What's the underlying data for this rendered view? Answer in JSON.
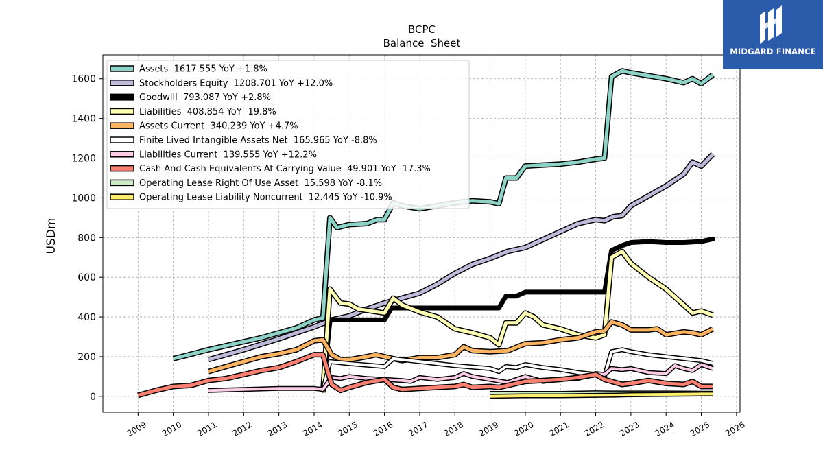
{
  "logo": {
    "text": "MIDGARD FINANCE",
    "background": "#2a5cab"
  },
  "chart_data": {
    "type": "line",
    "title": "BCPC",
    "subtitle": "Balance  Sheet",
    "xlabel": "",
    "ylabel": "USDm",
    "xlim": [
      2008.0,
      2026.1
    ],
    "ylim": [
      -80,
      1720
    ],
    "x_ticks": [
      "2009",
      "2010",
      "2011",
      "2012",
      "2013",
      "2014",
      "2015",
      "2016",
      "2017",
      "2018",
      "2019",
      "2020",
      "2021",
      "2022",
      "2023",
      "2024",
      "2025",
      "2026"
    ],
    "y_ticks": [
      "0",
      "200",
      "400",
      "600",
      "800",
      "1000",
      "1200",
      "1400",
      "1600"
    ],
    "grid": true,
    "legend_position": "top-left",
    "series": [
      {
        "name": "Assets",
        "label": "Assets  1617.555 YoY +1.8%",
        "color": "#8dd3c7",
        "width": 5,
        "points": [
          [
            2010.0,
            190
          ],
          [
            2011.0,
            235
          ],
          [
            2012.0,
            275
          ],
          [
            2012.5,
            295
          ],
          [
            2013.0,
            320
          ],
          [
            2013.5,
            345
          ],
          [
            2014.0,
            385
          ],
          [
            2014.25,
            395
          ],
          [
            2014.45,
            900
          ],
          [
            2014.65,
            850
          ],
          [
            2015.0,
            865
          ],
          [
            2015.5,
            870
          ],
          [
            2015.8,
            890
          ],
          [
            2016.0,
            890
          ],
          [
            2016.25,
            975
          ],
          [
            2016.5,
            960
          ],
          [
            2017.0,
            945
          ],
          [
            2017.5,
            960
          ],
          [
            2018.0,
            975
          ],
          [
            2018.5,
            985
          ],
          [
            2019.0,
            980
          ],
          [
            2019.25,
            970
          ],
          [
            2019.45,
            1100
          ],
          [
            2019.75,
            1100
          ],
          [
            2020.0,
            1160
          ],
          [
            2020.5,
            1165
          ],
          [
            2021.0,
            1170
          ],
          [
            2021.5,
            1180
          ],
          [
            2022.0,
            1195
          ],
          [
            2022.25,
            1200
          ],
          [
            2022.45,
            1610
          ],
          [
            2022.75,
            1640
          ],
          [
            2023.0,
            1630
          ],
          [
            2023.5,
            1615
          ],
          [
            2024.0,
            1600
          ],
          [
            2024.25,
            1590
          ],
          [
            2024.5,
            1580
          ],
          [
            2024.75,
            1600
          ],
          [
            2025.0,
            1575
          ],
          [
            2025.33,
            1620
          ]
        ]
      },
      {
        "name": "Stockholders Equity",
        "label": "Stockholders Equity  1208.701 YoY +12.0%",
        "color": "#bebada",
        "width": 5,
        "points": [
          [
            2011.0,
            185
          ],
          [
            2012.0,
            235
          ],
          [
            2013.0,
            290
          ],
          [
            2014.0,
            350
          ],
          [
            2014.5,
            385
          ],
          [
            2015.0,
            405
          ],
          [
            2015.5,
            440
          ],
          [
            2016.0,
            470
          ],
          [
            2016.5,
            495
          ],
          [
            2017.0,
            520
          ],
          [
            2017.5,
            565
          ],
          [
            2018.0,
            620
          ],
          [
            2018.5,
            665
          ],
          [
            2019.0,
            695
          ],
          [
            2019.5,
            730
          ],
          [
            2020.0,
            750
          ],
          [
            2020.5,
            790
          ],
          [
            2021.0,
            830
          ],
          [
            2021.5,
            870
          ],
          [
            2022.0,
            890
          ],
          [
            2022.25,
            885
          ],
          [
            2022.5,
            905
          ],
          [
            2022.75,
            910
          ],
          [
            2023.0,
            960
          ],
          [
            2023.5,
            1010
          ],
          [
            2024.0,
            1060
          ],
          [
            2024.5,
            1120
          ],
          [
            2024.75,
            1180
          ],
          [
            2025.0,
            1160
          ],
          [
            2025.33,
            1220
          ]
        ]
      },
      {
        "name": "Goodwill",
        "label": "Goodwill  793.087 YoY +2.8%",
        "color": "#000000",
        "width": 7,
        "points": [
          [
            2014.25,
            30
          ],
          [
            2014.45,
            385
          ],
          [
            2016.0,
            385
          ],
          [
            2016.2,
            445
          ],
          [
            2019.25,
            445
          ],
          [
            2019.45,
            505
          ],
          [
            2019.75,
            505
          ],
          [
            2020.0,
            525
          ],
          [
            2022.25,
            525
          ],
          [
            2022.45,
            735
          ],
          [
            2022.75,
            760
          ],
          [
            2023.0,
            775
          ],
          [
            2023.5,
            780
          ],
          [
            2024.0,
            775
          ],
          [
            2024.5,
            775
          ],
          [
            2025.0,
            780
          ],
          [
            2025.33,
            793
          ]
        ]
      },
      {
        "name": "Liabilities",
        "label": "Liabilities  408.854 YoY -19.8%",
        "color": "#ffffb3",
        "width": 5,
        "points": [
          [
            2014.25,
            20
          ],
          [
            2014.45,
            540
          ],
          [
            2014.75,
            470
          ],
          [
            2015.0,
            465
          ],
          [
            2015.25,
            440
          ],
          [
            2016.0,
            420
          ],
          [
            2016.25,
            495
          ],
          [
            2016.5,
            460
          ],
          [
            2017.0,
            425
          ],
          [
            2017.5,
            400
          ],
          [
            2018.0,
            340
          ],
          [
            2018.5,
            320
          ],
          [
            2019.0,
            295
          ],
          [
            2019.25,
            260
          ],
          [
            2019.45,
            370
          ],
          [
            2019.75,
            370
          ],
          [
            2020.0,
            420
          ],
          [
            2020.25,
            400
          ],
          [
            2020.5,
            360
          ],
          [
            2021.0,
            340
          ],
          [
            2021.5,
            310
          ],
          [
            2022.0,
            295
          ],
          [
            2022.25,
            310
          ],
          [
            2022.45,
            700
          ],
          [
            2022.75,
            730
          ],
          [
            2023.0,
            670
          ],
          [
            2023.5,
            600
          ],
          [
            2024.0,
            540
          ],
          [
            2024.25,
            500
          ],
          [
            2024.5,
            460
          ],
          [
            2024.75,
            420
          ],
          [
            2025.0,
            430
          ],
          [
            2025.33,
            409
          ]
        ]
      },
      {
        "name": "Assets Current",
        "label": "Assets Current  340.239 YoY +4.7%",
        "color": "#fdb462",
        "width": 5,
        "points": [
          [
            2011.0,
            125
          ],
          [
            2011.5,
            150
          ],
          [
            2012.0,
            175
          ],
          [
            2012.5,
            200
          ],
          [
            2013.0,
            215
          ],
          [
            2013.5,
            235
          ],
          [
            2014.0,
            280
          ],
          [
            2014.25,
            285
          ],
          [
            2014.5,
            210
          ],
          [
            2014.75,
            185
          ],
          [
            2015.0,
            185
          ],
          [
            2015.5,
            200
          ],
          [
            2015.75,
            210
          ],
          [
            2016.0,
            200
          ],
          [
            2016.5,
            180
          ],
          [
            2017.0,
            195
          ],
          [
            2017.5,
            195
          ],
          [
            2018.0,
            210
          ],
          [
            2018.25,
            250
          ],
          [
            2018.5,
            230
          ],
          [
            2019.0,
            225
          ],
          [
            2019.5,
            230
          ],
          [
            2020.0,
            265
          ],
          [
            2020.5,
            270
          ],
          [
            2021.0,
            285
          ],
          [
            2021.5,
            295
          ],
          [
            2022.0,
            325
          ],
          [
            2022.25,
            330
          ],
          [
            2022.45,
            375
          ],
          [
            2022.75,
            360
          ],
          [
            2023.0,
            335
          ],
          [
            2023.5,
            335
          ],
          [
            2023.75,
            340
          ],
          [
            2024.0,
            310
          ],
          [
            2024.5,
            325
          ],
          [
            2024.75,
            320
          ],
          [
            2025.0,
            310
          ],
          [
            2025.33,
            340
          ]
        ]
      },
      {
        "name": "Finite Lived Intangible Assets Net",
        "label": "Finite Lived Intangible Assets Net  165.965 YoY -8.8%",
        "color": "#ffffff",
        "width": 4,
        "points": [
          [
            2014.25,
            30
          ],
          [
            2014.45,
            175
          ],
          [
            2015.0,
            165
          ],
          [
            2016.0,
            150
          ],
          [
            2016.25,
            190
          ],
          [
            2017.0,
            175
          ],
          [
            2018.0,
            155
          ],
          [
            2019.0,
            140
          ],
          [
            2019.25,
            125
          ],
          [
            2019.45,
            150
          ],
          [
            2019.75,
            145
          ],
          [
            2020.0,
            160
          ],
          [
            2020.5,
            145
          ],
          [
            2021.0,
            135
          ],
          [
            2021.5,
            120
          ],
          [
            2022.0,
            110
          ],
          [
            2022.25,
            100
          ],
          [
            2022.45,
            225
          ],
          [
            2022.75,
            235
          ],
          [
            2023.0,
            225
          ],
          [
            2023.5,
            210
          ],
          [
            2024.0,
            200
          ],
          [
            2024.5,
            190
          ],
          [
            2025.0,
            180
          ],
          [
            2025.33,
            166
          ]
        ]
      },
      {
        "name": "Liabilities Current",
        "label": "Liabilities Current  139.555 YoY +12.2%",
        "color": "#fccde5",
        "width": 4,
        "points": [
          [
            2011.0,
            30
          ],
          [
            2012.0,
            35
          ],
          [
            2013.0,
            40
          ],
          [
            2014.0,
            40
          ],
          [
            2014.25,
            35
          ],
          [
            2014.5,
            95
          ],
          [
            2014.75,
            90
          ],
          [
            2015.0,
            100
          ],
          [
            2015.5,
            90
          ],
          [
            2016.0,
            85
          ],
          [
            2016.5,
            80
          ],
          [
            2016.75,
            75
          ],
          [
            2017.0,
            95
          ],
          [
            2017.5,
            85
          ],
          [
            2018.0,
            95
          ],
          [
            2018.25,
            115
          ],
          [
            2018.5,
            100
          ],
          [
            2019.0,
            85
          ],
          [
            2019.5,
            70
          ],
          [
            2020.0,
            100
          ],
          [
            2020.5,
            75
          ],
          [
            2021.0,
            85
          ],
          [
            2021.5,
            90
          ],
          [
            2022.0,
            115
          ],
          [
            2022.25,
            110
          ],
          [
            2022.45,
            140
          ],
          [
            2022.75,
            135
          ],
          [
            2023.0,
            140
          ],
          [
            2023.5,
            120
          ],
          [
            2024.0,
            115
          ],
          [
            2024.25,
            155
          ],
          [
            2024.5,
            140
          ],
          [
            2024.75,
            130
          ],
          [
            2025.0,
            160
          ],
          [
            2025.33,
            140
          ]
        ]
      },
      {
        "name": "Cash And Cash Equivalents At Carrying Value",
        "label": "Cash And Cash Equivalents At Carrying Value  49.901 YoY -17.3%",
        "color": "#fb8072",
        "width": 5,
        "points": [
          [
            2009.0,
            5
          ],
          [
            2009.5,
            30
          ],
          [
            2010.0,
            50
          ],
          [
            2010.5,
            55
          ],
          [
            2011.0,
            80
          ],
          [
            2011.5,
            90
          ],
          [
            2012.0,
            110
          ],
          [
            2012.5,
            130
          ],
          [
            2013.0,
            145
          ],
          [
            2013.5,
            175
          ],
          [
            2014.0,
            210
          ],
          [
            2014.25,
            210
          ],
          [
            2014.5,
            60
          ],
          [
            2014.75,
            30
          ],
          [
            2015.0,
            45
          ],
          [
            2015.5,
            70
          ],
          [
            2016.0,
            85
          ],
          [
            2016.25,
            45
          ],
          [
            2016.5,
            35
          ],
          [
            2017.0,
            40
          ],
          [
            2017.5,
            45
          ],
          [
            2018.0,
            50
          ],
          [
            2018.25,
            60
          ],
          [
            2018.5,
            45
          ],
          [
            2019.0,
            50
          ],
          [
            2019.25,
            45
          ],
          [
            2019.5,
            55
          ],
          [
            2020.0,
            75
          ],
          [
            2020.5,
            80
          ],
          [
            2021.0,
            85
          ],
          [
            2021.5,
            95
          ],
          [
            2022.0,
            110
          ],
          [
            2022.25,
            85
          ],
          [
            2022.45,
            75
          ],
          [
            2022.75,
            60
          ],
          [
            2023.0,
            65
          ],
          [
            2023.5,
            80
          ],
          [
            2024.0,
            65
          ],
          [
            2024.5,
            60
          ],
          [
            2024.75,
            75
          ],
          [
            2025.0,
            50
          ],
          [
            2025.33,
            50
          ]
        ]
      },
      {
        "name": "Operating Lease Right Of Use Asset",
        "label": "Operating Lease Right Of Use Asset  15.598 YoY -8.1%",
        "color": "#ccebc5",
        "width": 4,
        "points": [
          [
            2019.0,
            15
          ],
          [
            2020.0,
            15
          ],
          [
            2021.0,
            15
          ],
          [
            2022.0,
            18
          ],
          [
            2022.5,
            17
          ],
          [
            2023.0,
            17
          ],
          [
            2024.0,
            17
          ],
          [
            2025.0,
            16
          ],
          [
            2025.33,
            16
          ]
        ]
      },
      {
        "name": "Operating Lease Liability Noncurrent",
        "label": "Operating Lease Liability Noncurrent  12.445 YoY -10.9%",
        "color": "#ffed6f",
        "width": 4,
        "points": [
          [
            2019.0,
            0
          ],
          [
            2020.0,
            3
          ],
          [
            2021.0,
            3
          ],
          [
            2022.0,
            5
          ],
          [
            2022.5,
            6
          ],
          [
            2023.0,
            8
          ],
          [
            2024.0,
            10
          ],
          [
            2025.0,
            12
          ],
          [
            2025.33,
            12
          ]
        ]
      }
    ]
  }
}
